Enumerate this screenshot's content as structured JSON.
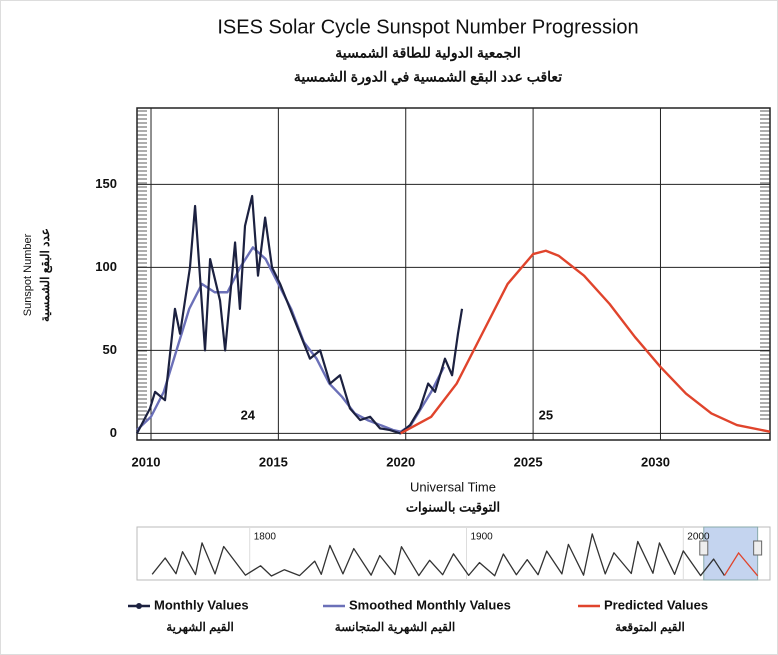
{
  "chart_data": {
    "type": "line",
    "title": "ISES Solar Cycle Sunspot Number Progression",
    "subtitle": "الجمعية الدولية للطاقة الشمسية",
    "subtitle2": "تعاقب عدد البقع الشمسية في الدورة الشمسية",
    "y_label": "Sunspot Number",
    "y_label_ar": "عدد البقع الشمسية",
    "x_label": "Universal Time",
    "x_label_ar": "التوقيت بالسنوات",
    "xlim": [
      2009.45,
      2034.3
    ],
    "ylim": [
      -4,
      196
    ],
    "xticks": [
      2010,
      2015,
      2020,
      2025,
      2030
    ],
    "yticks": [
      0,
      50,
      100,
      150
    ],
    "grid": true,
    "series": [
      {
        "name": "Monthly Values",
        "name_ar": "القيم الشهرية",
        "color": "#1c2140",
        "x": [
          2009.45,
          2009.96,
          2010.16,
          2010.55,
          2010.94,
          2011.14,
          2011.53,
          2011.73,
          2011.92,
          2012.12,
          2012.32,
          2012.71,
          2012.91,
          2013.3,
          2013.49,
          2013.69,
          2013.97,
          2014.2,
          2014.48,
          2014.75,
          2015.07,
          2015.46,
          2015.85,
          2016.24,
          2016.64,
          2017.03,
          2017.42,
          2017.81,
          2018.21,
          2018.6,
          2018.99,
          2019.38,
          2019.78,
          2020.17,
          2020.56,
          2020.88,
          2021.15,
          2021.54,
          2021.82,
          2022.05,
          2022.21
        ],
        "values": [
          0,
          15,
          25,
          20,
          75,
          60,
          100,
          137,
          95,
          50,
          105,
          80,
          50,
          115,
          75,
          125,
          143,
          95,
          130,
          100,
          90,
          75,
          60,
          45,
          50,
          30,
          35,
          15,
          8,
          10,
          3,
          2,
          0,
          5,
          15,
          30,
          25,
          45,
          35,
          60,
          75
        ]
      },
      {
        "name": "Smoothed Monthly Values",
        "name_ar": "القيم الشهرية المتجانسة",
        "color": "#6b70b8",
        "x": [
          2009.45,
          2010,
          2010.5,
          2011,
          2011.5,
          2012,
          2012.5,
          2013,
          2013.5,
          2014,
          2014.5,
          2015,
          2015.5,
          2016,
          2016.5,
          2017,
          2017.5,
          2018,
          2018.5,
          2019,
          2019.5,
          2019.8,
          2020.2,
          2020.6,
          2021,
          2021.5
        ],
        "values": [
          2,
          10,
          25,
          50,
          75,
          90,
          85,
          85,
          100,
          112,
          105,
          90,
          75,
          55,
          45,
          30,
          22,
          12,
          8,
          5,
          2,
          1,
          5,
          15,
          25,
          40
        ]
      },
      {
        "name": "Predicted Values",
        "name_ar": "القيم المتوقعة",
        "color": "#e0442c",
        "x": [
          2019.8,
          2021,
          2022,
          2023,
          2024,
          2025,
          2025.5,
          2026,
          2027,
          2028,
          2029,
          2030,
          2031,
          2032,
          2033,
          2034.3
        ],
        "values": [
          0,
          10,
          30,
          60,
          90,
          108,
          110,
          107,
          95,
          78,
          58,
          40,
          24,
          12,
          5,
          1
        ]
      }
    ],
    "annotations": [
      {
        "text": "24",
        "x": 2013.8,
        "y": 8
      },
      {
        "text": "25",
        "x": 2025.5,
        "y": 8
      }
    ],
    "navigator": {
      "xlim": [
        1748,
        2040
      ],
      "ylim": [
        0,
        215
      ],
      "xticks": [
        1800,
        1900,
        2000
      ],
      "selected": [
        2009.45,
        2034.3
      ],
      "x": [
        1755,
        1761,
        1766,
        1769,
        1775,
        1778,
        1784,
        1788,
        1798,
        1805,
        1810,
        1816,
        1823,
        1830,
        1833,
        1837,
        1843,
        1848,
        1856,
        1860,
        1867,
        1870,
        1878,
        1883,
        1889,
        1894,
        1901,
        1906,
        1913,
        1917,
        1923,
        1928,
        1933,
        1937,
        1944,
        1947,
        1954,
        1958,
        1964,
        1968,
        1976,
        1979,
        1986,
        1989,
        1996,
        2000,
        2008,
        2014,
        2019
      ],
      "values": [
        8,
        86,
        11,
        116,
        7,
        158,
        10,
        141,
        4,
        49,
        0,
        30,
        2,
        71,
        8,
        146,
        10,
        131,
        4,
        98,
        7,
        140,
        2,
        75,
        6,
        106,
        3,
        64,
        1,
        105,
        6,
        78,
        6,
        119,
        10,
        151,
        4,
        201,
        10,
        111,
        12,
        165,
        13,
        158,
        8,
        120,
        2,
        81,
        2
      ],
      "predicted_x": [
        2019,
        2025.5,
        2034.3
      ],
      "predicted_values": [
        2,
        110,
        1
      ]
    }
  }
}
